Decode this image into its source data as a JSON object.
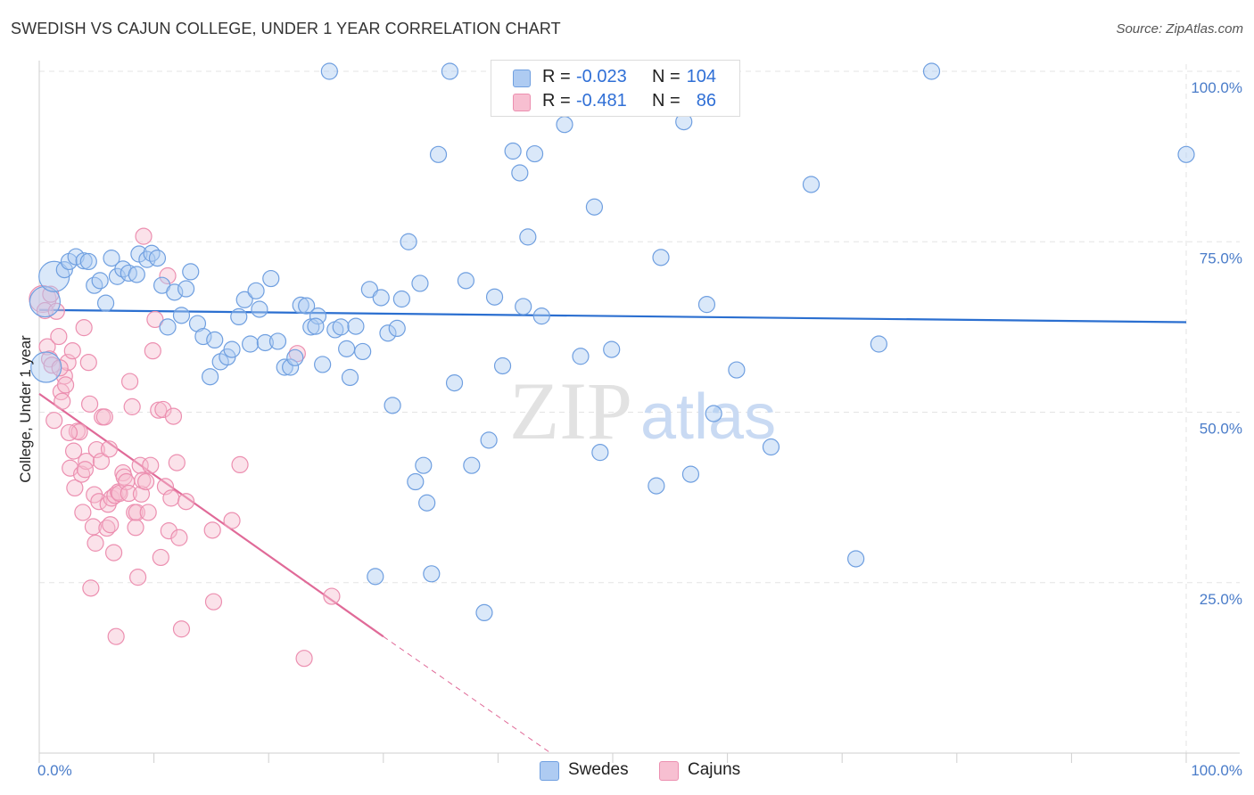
{
  "title": "SWEDISH VS CAJUN COLLEGE, UNDER 1 YEAR CORRELATION CHART",
  "source": "Source: ZipAtlas.com",
  "watermark": {
    "zip": "ZIP",
    "atlas": "atlas"
  },
  "legend": {
    "swedes": {
      "r_label": "R =",
      "r_value": "-0.023",
      "n_label": "N =",
      "n_value": "104"
    },
    "cajuns": {
      "r_label": "R =",
      "r_value": "-0.481",
      "n_label": "N =",
      "n_value": "86"
    }
  },
  "bottom_legend": {
    "swedes": "Swedes",
    "cajuns": "Cajuns"
  },
  "colors": {
    "swedes_fill": "#aecbf2",
    "swedes_stroke": "#6f9fe0",
    "swedes_line": "#2b6fd0",
    "cajuns_fill": "#f7bfd1",
    "cajuns_stroke": "#ec8fb0",
    "cajuns_line": "#e06a98",
    "grid": "#e3e3e3",
    "tick_text": "#4a7cc9"
  },
  "chart_data": {
    "type": "scatter",
    "title": "SWEDISH VS CAJUN COLLEGE, UNDER 1 YEAR CORRELATION CHART",
    "xlabel": "",
    "ylabel": "College, Under 1 year",
    "xlim": [
      0,
      100
    ],
    "ylim": [
      0,
      100
    ],
    "x_ticks": [
      "0.0%",
      "100.0%"
    ],
    "y_ticks": [
      "25.0%",
      "50.0%",
      "75.0%",
      "100.0%"
    ],
    "y_tick_values": [
      25,
      50,
      75,
      100
    ],
    "series": [
      {
        "name": "Swedes",
        "R": -0.023,
        "N": 104,
        "trend": {
          "x": [
            0,
            100
          ],
          "y": [
            65.0,
            63.2
          ]
        },
        "points": [
          [
            0.5,
            66.2
          ],
          [
            0.6,
            56.6
          ],
          [
            1.3,
            69.9
          ],
          [
            2.2,
            70.9
          ],
          [
            2.6,
            72.1
          ],
          [
            3.2,
            72.8
          ],
          [
            3.9,
            72.2
          ],
          [
            4.3,
            72.1
          ],
          [
            4.8,
            68.6
          ],
          [
            5.3,
            69.3
          ],
          [
            5.8,
            66.0
          ],
          [
            6.3,
            72.6
          ],
          [
            6.8,
            69.9
          ],
          [
            7.3,
            71.0
          ],
          [
            7.8,
            70.4
          ],
          [
            8.5,
            70.2
          ],
          [
            8.7,
            73.2
          ],
          [
            9.4,
            72.4
          ],
          [
            9.8,
            73.3
          ],
          [
            10.3,
            72.6
          ],
          [
            10.7,
            68.6
          ],
          [
            11.2,
            62.5
          ],
          [
            11.8,
            67.6
          ],
          [
            12.4,
            64.2
          ],
          [
            12.8,
            68.1
          ],
          [
            13.2,
            70.6
          ],
          [
            13.8,
            63.0
          ],
          [
            14.3,
            61.1
          ],
          [
            14.9,
            55.2
          ],
          [
            15.3,
            60.6
          ],
          [
            15.8,
            57.4
          ],
          [
            16.4,
            58.1
          ],
          [
            16.8,
            59.2
          ],
          [
            17.4,
            64.0
          ],
          [
            17.9,
            66.5
          ],
          [
            18.4,
            60.0
          ],
          [
            18.9,
            67.8
          ],
          [
            19.2,
            65.1
          ],
          [
            19.7,
            60.2
          ],
          [
            20.2,
            69.6
          ],
          [
            20.8,
            60.4
          ],
          [
            21.4,
            56.6
          ],
          [
            21.9,
            56.6
          ],
          [
            22.3,
            58.0
          ],
          [
            22.8,
            65.7
          ],
          [
            23.3,
            65.6
          ],
          [
            23.7,
            62.5
          ],
          [
            24.3,
            64.1
          ],
          [
            24.7,
            57.0
          ],
          [
            25.3,
            100
          ],
          [
            25.8,
            62.1
          ],
          [
            26.3,
            62.5
          ],
          [
            26.8,
            59.3
          ],
          [
            27.1,
            55.1
          ],
          [
            27.6,
            62.6
          ],
          [
            28.2,
            58.9
          ],
          [
            28.8,
            68.0
          ],
          [
            29.8,
            66.8
          ],
          [
            30.4,
            61.6
          ],
          [
            30.8,
            51.0
          ],
          [
            31.2,
            62.3
          ],
          [
            31.6,
            66.6
          ],
          [
            32.2,
            75.0
          ],
          [
            33.2,
            68.9
          ],
          [
            33.8,
            36.7
          ],
          [
            34.2,
            26.3
          ],
          [
            34.8,
            87.8
          ],
          [
            35.8,
            100
          ],
          [
            36.2,
            54.3
          ],
          [
            37.2,
            69.3
          ],
          [
            37.7,
            42.2
          ],
          [
            38.8,
            20.6
          ],
          [
            39.2,
            45.9
          ],
          [
            39.7,
            66.9
          ],
          [
            40.4,
            56.8
          ],
          [
            41.3,
            88.3
          ],
          [
            41.9,
            85.1
          ],
          [
            42.2,
            65.5
          ],
          [
            42.6,
            75.7
          ],
          [
            43.2,
            87.9
          ],
          [
            43.8,
            64.1
          ],
          [
            45.2,
            100
          ],
          [
            45.8,
            92.2
          ],
          [
            47.2,
            58.2
          ],
          [
            48.4,
            80.1
          ],
          [
            48.9,
            44.1
          ],
          [
            49.9,
            59.2
          ],
          [
            53.8,
            39.2
          ],
          [
            54.2,
            72.7
          ],
          [
            56.2,
            92.6
          ],
          [
            56.8,
            40.9
          ],
          [
            58.2,
            65.8
          ],
          [
            58.8,
            49.8
          ],
          [
            60.8,
            56.2
          ],
          [
            63.8,
            44.9
          ],
          [
            67.3,
            83.4
          ],
          [
            71.2,
            28.5
          ],
          [
            73.2,
            60.0
          ],
          [
            77.8,
            100
          ],
          [
            100,
            87.8
          ],
          [
            29.3,
            25.9
          ],
          [
            32.8,
            39.8
          ],
          [
            33.5,
            42.2
          ],
          [
            24.1,
            62.6
          ]
        ]
      },
      {
        "name": "Cajuns",
        "R": -0.481,
        "N": 86,
        "trend": {
          "x": [
            0,
            30
          ],
          "y": [
            52.7,
            17.1
          ]
        },
        "trend_dashed": {
          "x": [
            30,
            44.6
          ],
          "y": [
            17.1,
            0
          ]
        },
        "points": [
          [
            0.3,
            66.6
          ],
          [
            0.5,
            64.9
          ],
          [
            0.7,
            59.6
          ],
          [
            0.9,
            57.8
          ],
          [
            1.1,
            56.9
          ],
          [
            1.3,
            48.8
          ],
          [
            1.5,
            64.8
          ],
          [
            1.7,
            61.1
          ],
          [
            1.9,
            53.0
          ],
          [
            2.0,
            51.6
          ],
          [
            2.2,
            55.3
          ],
          [
            2.3,
            54.0
          ],
          [
            2.5,
            57.3
          ],
          [
            2.7,
            41.8
          ],
          [
            2.9,
            59.0
          ],
          [
            3.0,
            44.3
          ],
          [
            3.1,
            38.9
          ],
          [
            3.3,
            47.2
          ],
          [
            3.5,
            47.1
          ],
          [
            3.7,
            40.9
          ],
          [
            3.8,
            35.3
          ],
          [
            3.9,
            62.4
          ],
          [
            4.1,
            42.8
          ],
          [
            4.3,
            57.3
          ],
          [
            4.4,
            51.2
          ],
          [
            4.5,
            24.2
          ],
          [
            4.7,
            33.2
          ],
          [
            4.8,
            37.9
          ],
          [
            4.9,
            30.8
          ],
          [
            5.0,
            44.5
          ],
          [
            5.2,
            36.9
          ],
          [
            5.4,
            42.8
          ],
          [
            5.5,
            49.3
          ],
          [
            5.7,
            49.3
          ],
          [
            5.9,
            33.0
          ],
          [
            6.0,
            36.5
          ],
          [
            6.1,
            44.6
          ],
          [
            6.3,
            37.4
          ],
          [
            6.5,
            29.4
          ],
          [
            6.6,
            37.8
          ],
          [
            6.7,
            17.1
          ],
          [
            6.9,
            38.3
          ],
          [
            7.0,
            38.1
          ],
          [
            7.3,
            41.1
          ],
          [
            7.4,
            40.5
          ],
          [
            7.6,
            39.8
          ],
          [
            7.8,
            38.1
          ],
          [
            7.9,
            54.5
          ],
          [
            8.1,
            50.8
          ],
          [
            8.3,
            35.3
          ],
          [
            8.4,
            33.1
          ],
          [
            8.5,
            35.3
          ],
          [
            8.6,
            25.8
          ],
          [
            8.8,
            42.2
          ],
          [
            8.9,
            38.0
          ],
          [
            9.0,
            40.0
          ],
          [
            9.1,
            75.8
          ],
          [
            9.3,
            39.8
          ],
          [
            9.5,
            35.3
          ],
          [
            9.7,
            42.2
          ],
          [
            9.9,
            59.0
          ],
          [
            10.1,
            63.6
          ],
          [
            10.4,
            50.3
          ],
          [
            10.6,
            28.7
          ],
          [
            10.8,
            50.4
          ],
          [
            11.0,
            39.1
          ],
          [
            11.3,
            32.6
          ],
          [
            11.5,
            37.4
          ],
          [
            11.7,
            49.4
          ],
          [
            12.0,
            42.6
          ],
          [
            12.2,
            31.6
          ],
          [
            12.4,
            18.2
          ],
          [
            12.8,
            36.9
          ],
          [
            15.1,
            32.7
          ],
          [
            15.2,
            22.2
          ],
          [
            16.8,
            34.1
          ],
          [
            17.5,
            42.3
          ],
          [
            22.5,
            58.6
          ],
          [
            23.1,
            13.9
          ],
          [
            25.5,
            23.0
          ],
          [
            1.0,
            67.3
          ],
          [
            1.8,
            56.5
          ],
          [
            2.6,
            47.0
          ],
          [
            4.0,
            41.6
          ],
          [
            6.2,
            33.5
          ],
          [
            11.2,
            70.0
          ]
        ]
      }
    ]
  }
}
